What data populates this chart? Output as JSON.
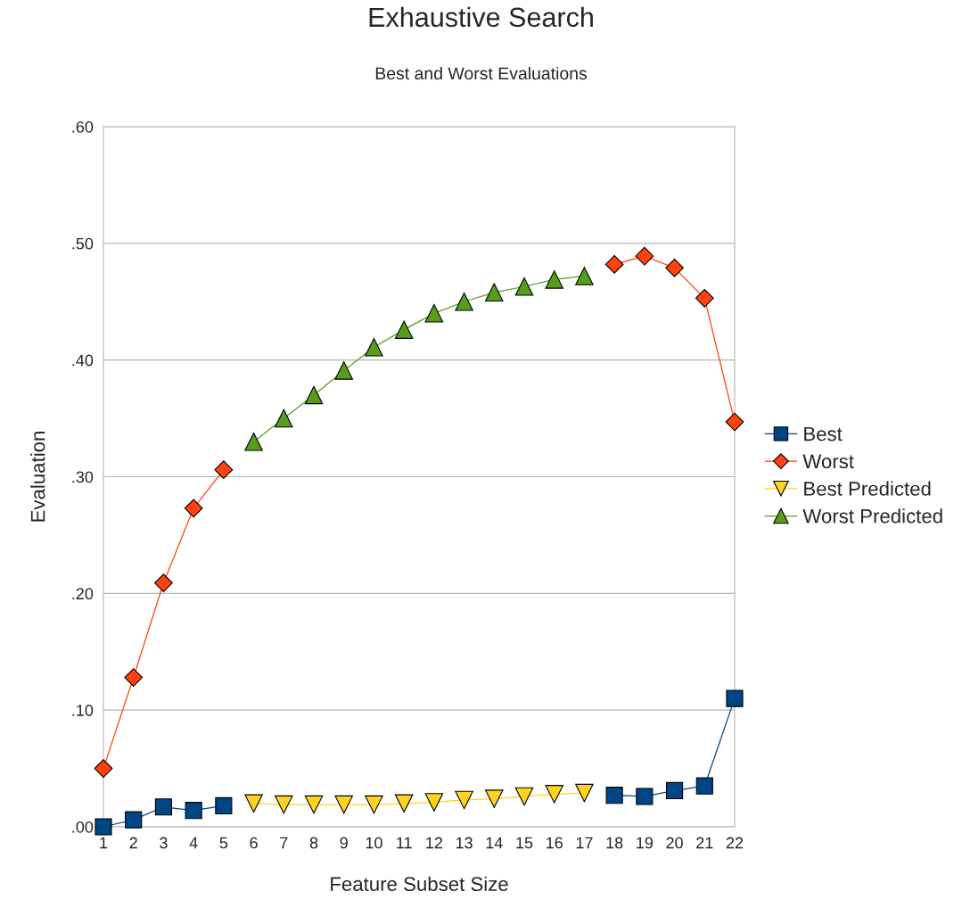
{
  "chart_data": {
    "type": "line",
    "title": "Exhaustive Search",
    "subtitle": "Best and Worst Evaluations",
    "xlabel": "Feature Subset Size",
    "ylabel": "Evaluation",
    "categories": [
      "1",
      "2",
      "3",
      "4",
      "5",
      "6",
      "7",
      "8",
      "9",
      "10",
      "11",
      "12",
      "13",
      "14",
      "15",
      "16",
      "17",
      "18",
      "19",
      "20",
      "21",
      "22"
    ],
    "series": [
      {
        "name": "Best",
        "color": "#004586",
        "marker": "square",
        "values": [
          0.0,
          0.006,
          0.017,
          0.014,
          0.018,
          null,
          null,
          null,
          null,
          null,
          null,
          null,
          null,
          null,
          null,
          null,
          null,
          0.027,
          0.026,
          0.031,
          0.035,
          0.11
        ]
      },
      {
        "name": "Worst",
        "color": "#ff420e",
        "marker": "diamond",
        "values": [
          0.05,
          0.128,
          0.209,
          0.273,
          0.306,
          null,
          null,
          null,
          null,
          null,
          null,
          null,
          null,
          null,
          null,
          null,
          null,
          0.482,
          0.489,
          0.479,
          0.453,
          0.347
        ]
      },
      {
        "name": "Best Predicted",
        "color": "#ffd320",
        "marker": "triangle_down",
        "values": [
          null,
          null,
          null,
          null,
          null,
          0.02,
          0.019,
          0.019,
          0.019,
          0.019,
          0.02,
          0.021,
          0.023,
          0.024,
          0.026,
          0.028,
          0.029,
          null,
          null,
          null,
          null,
          null
        ]
      },
      {
        "name": "Worst Predicted",
        "color": "#579d1c",
        "marker": "triangle",
        "values": [
          null,
          null,
          null,
          null,
          null,
          0.33,
          0.35,
          0.37,
          0.391,
          0.411,
          0.426,
          0.44,
          0.45,
          0.458,
          0.463,
          0.469,
          0.472,
          null,
          null,
          null,
          null,
          null
        ]
      }
    ],
    "ylim": [
      0,
      0.6
    ],
    "yticks": [
      {
        "value": 0,
        "label": ".00"
      },
      {
        "value": 0.1,
        "label": ".10"
      },
      {
        "value": 0.2,
        "label": ".20"
      },
      {
        "value": 0.3,
        "label": ".30"
      },
      {
        "value": 0.4,
        "label": ".40"
      },
      {
        "value": 0.5,
        "label": ".50"
      },
      {
        "value": 0.6,
        "label": ".60"
      }
    ],
    "grid": "y",
    "legend": "right",
    "line_style": "solid"
  }
}
